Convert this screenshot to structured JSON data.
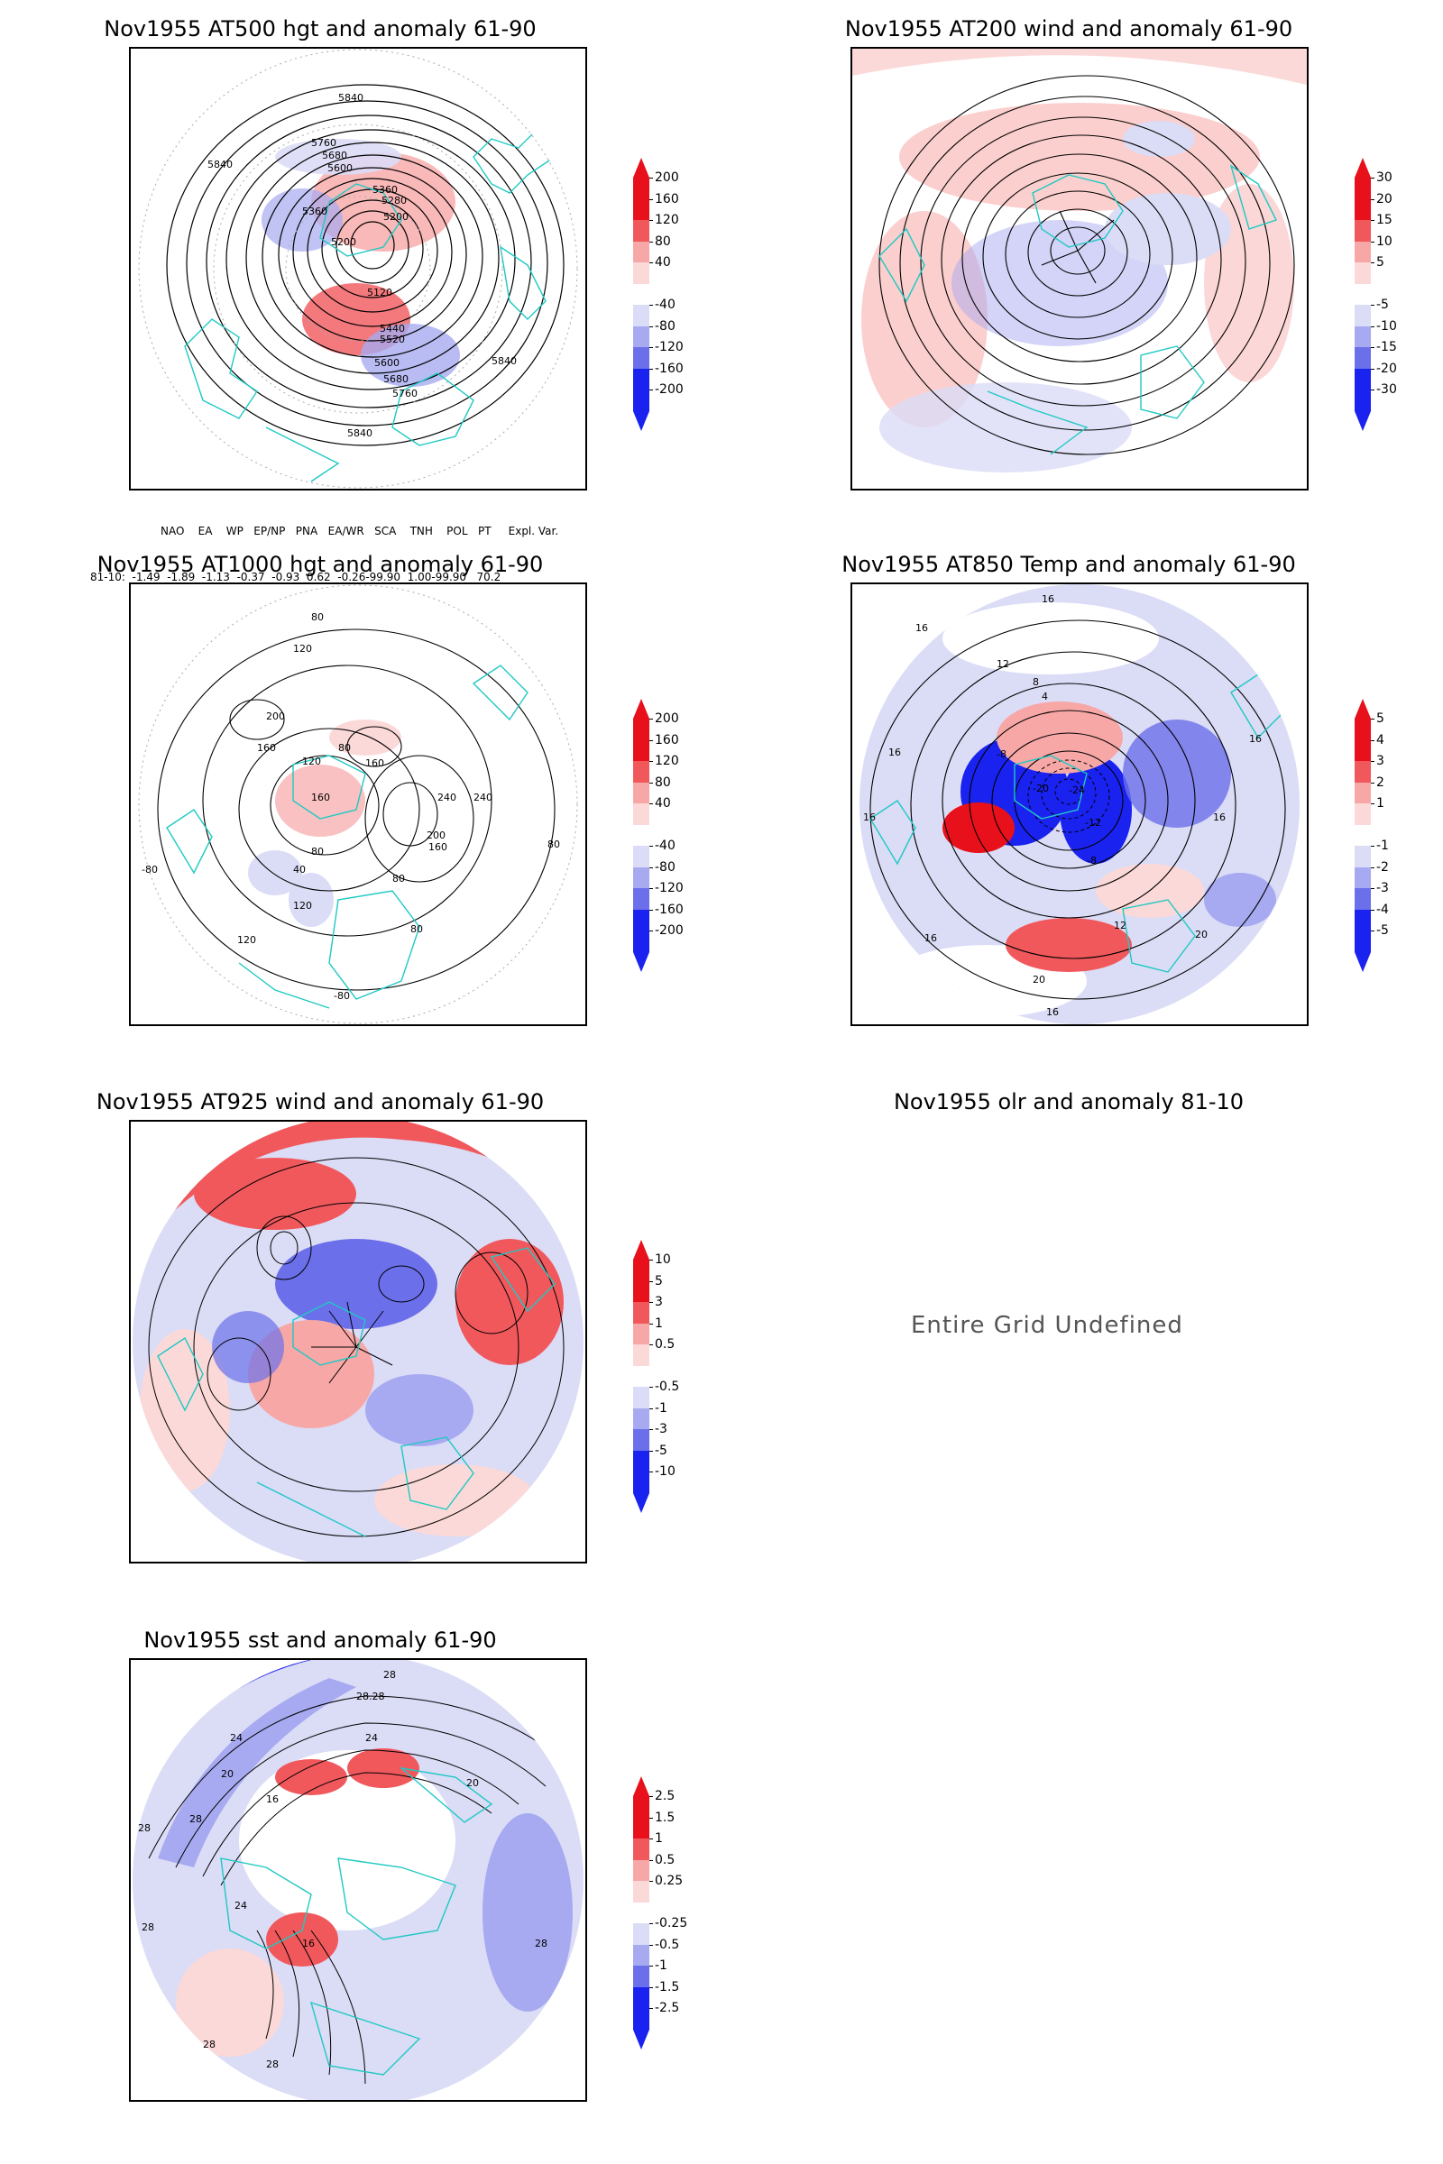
{
  "panels": [
    {
      "title": "Nov1955 AT500 hgt and anomaly 61-90",
      "contour_labels": [
        "5840",
        "5840",
        "5760",
        "5680",
        "5600",
        "5360",
        "5280",
        "5200",
        "5360",
        "5200",
        "5120",
        "5440",
        "5520",
        "5600",
        "5680",
        "5760",
        "5840",
        "5840"
      ]
    },
    {
      "title": "Nov1955 AT200 wind and anomaly 61-90",
      "contour_labels": []
    },
    {
      "title": "Nov1955 AT1000 hgt and anomaly 61-90",
      "contour_labels": [
        "80",
        "120",
        "200",
        "160",
        "120",
        "80",
        "160",
        "240",
        "240",
        "160",
        "80",
        "200",
        "40",
        "160",
        "120",
        "80",
        "-80",
        "80",
        "120",
        "80",
        "-80"
      ]
    },
    {
      "title": "Nov1955 AT850 Temp and anomaly 61-90",
      "contour_labels": [
        "16",
        "16",
        "12",
        "8",
        "4",
        "-8",
        "-20",
        "-24",
        "-12",
        "-8",
        "16",
        "16",
        "16",
        "16",
        "12",
        "20",
        "16",
        "20",
        "16"
      ]
    },
    {
      "title": "Nov1955 AT925 wind and anomaly 61-90",
      "contour_labels": []
    },
    {
      "title": "Nov1955 olr and anomaly 81-10",
      "undefined_text": "Entire Grid Undefined"
    },
    {
      "title": "Nov1955 sst and anomaly 61-90",
      "contour_labels": [
        "28",
        "28.28",
        "24",
        "24",
        "20",
        "16",
        "28",
        "28",
        "20",
        "16",
        "24",
        "28",
        "28",
        "28",
        "28"
      ]
    }
  ],
  "colorbars": {
    "hgt": [
      "200",
      "160",
      "120",
      "80",
      "40",
      "-40",
      "-80",
      "-120",
      "-160",
      "-200"
    ],
    "wind200": [
      "30",
      "20",
      "15",
      "10",
      "5",
      "-5",
      "-10",
      "-15",
      "-20",
      "-30"
    ],
    "temp": [
      "5",
      "4",
      "3",
      "2",
      "1",
      "-1",
      "-2",
      "-3",
      "-4",
      "-5"
    ],
    "wind925": [
      "10",
      "5",
      "3",
      "1",
      "0.5",
      "-0.5",
      "-1",
      "-3",
      "-5",
      "-10"
    ],
    "sst": [
      "2.5",
      "1.5",
      "1",
      "0.5",
      "0.25",
      "-0.25",
      "-0.5",
      "-1",
      "-1.5",
      "-2.5"
    ]
  },
  "teleconnection": {
    "header": "NAO    EA    WP   EP/NP   PNA   EA/WR   SCA    TNH    POL   PT     Expl. Var.",
    "row": "81-10:  -1.49  -1.89  -1.13  -0.37  -0.93  0.62  -0.26-99.90  1.00-99.90   70.2"
  },
  "colors": {
    "red_strong": "#e8101a",
    "red_mid": "#f0585c",
    "red_light": "#f7a7a6",
    "red_pale": "#fbd9d8",
    "blue_pale": "#dbdcf6",
    "blue_light": "#a7aaf0",
    "blue_mid": "#6b70ea",
    "blue_strong": "#1a22f0",
    "coastline": "#1fc9c3",
    "contour": "#000000"
  }
}
